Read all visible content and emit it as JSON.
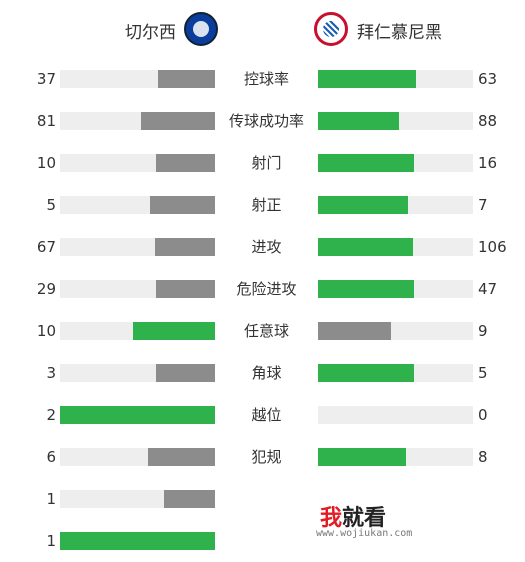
{
  "header": {
    "home_team": "切尔西",
    "away_team": "拜仁慕尼黑",
    "home_crest_icon": "chelsea-crest-icon",
    "away_crest_icon": "bayern-crest-icon"
  },
  "colors": {
    "leading_bar": "#2fb24c",
    "trailing_bar": "#8c8c8c",
    "track": "#eeeeee"
  },
  "stats": [
    {
      "label": "控球率",
      "home": "37",
      "away": "63",
      "home_fill": 0.37,
      "away_fill": 0.63,
      "leader": "away"
    },
    {
      "label": "传球成功率",
      "home": "81",
      "away": "88",
      "home_fill": 0.48,
      "away_fill": 0.52,
      "leader": "away"
    },
    {
      "label": "射门",
      "home": "10",
      "away": "16",
      "home_fill": 0.38,
      "away_fill": 0.62,
      "leader": "away"
    },
    {
      "label": "射正",
      "home": "5",
      "away": "7",
      "home_fill": 0.42,
      "away_fill": 0.58,
      "leader": "away"
    },
    {
      "label": "进攻",
      "home": "67",
      "away": "106",
      "home_fill": 0.39,
      "away_fill": 0.61,
      "leader": "away"
    },
    {
      "label": "危险进攻",
      "home": "29",
      "away": "47",
      "home_fill": 0.38,
      "away_fill": 0.62,
      "leader": "away"
    },
    {
      "label": "任意球",
      "home": "10",
      "away": "9",
      "home_fill": 0.53,
      "away_fill": 0.47,
      "leader": "home"
    },
    {
      "label": "角球",
      "home": "3",
      "away": "5",
      "home_fill": 0.38,
      "away_fill": 0.62,
      "leader": "away"
    },
    {
      "label": "越位",
      "home": "2",
      "away": "0",
      "home_fill": 1.0,
      "away_fill": 0.0,
      "leader": "home"
    },
    {
      "label": "犯规",
      "home": "6",
      "away": "8",
      "home_fill": 0.43,
      "away_fill": 0.57,
      "leader": "away"
    },
    {
      "label": "",
      "home": "1",
      "away": "",
      "home_fill": 0.33,
      "away_fill": 0.0,
      "leader": "away"
    },
    {
      "label": "",
      "home": "1",
      "away": "",
      "home_fill": 1.0,
      "away_fill": 0.0,
      "leader": "home"
    }
  ],
  "watermark": {
    "first_char": "我",
    "rest": "就看",
    "url": "www.wojiukan.com"
  }
}
